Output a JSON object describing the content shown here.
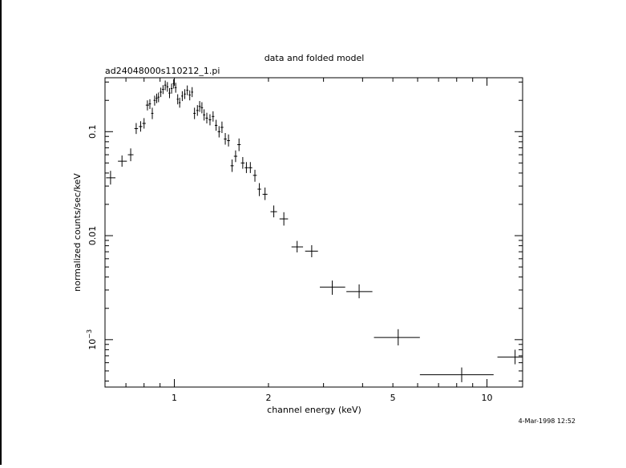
{
  "chart_data": {
    "type": "scatter",
    "title": "data and folded model",
    "subtitle": "ad24048000s110212_1.pi",
    "xlabel": "channel energy (keV)",
    "ylabel": "normalized counts/sec/keV",
    "timestamp": "4-Mar-1998 12:52",
    "x_scale": "log",
    "y_scale": "log",
    "xlim": [
      0.6,
      13.0
    ],
    "ylim": [
      0.00035,
      0.33
    ],
    "x_ticks": [
      {
        "v": 1,
        "label": "1"
      },
      {
        "v": 2,
        "label": "2"
      },
      {
        "v": 5,
        "label": "5"
      },
      {
        "v": 10,
        "label": "10"
      }
    ],
    "y_ticks": [
      {
        "v": 0.1,
        "label": "0.1"
      },
      {
        "v": 0.01,
        "label": "0.01"
      },
      {
        "v": 0.001,
        "label": "10",
        "sup": "−3"
      }
    ],
    "grid": false,
    "series": [
      {
        "points": [
          {
            "x": 0.625,
            "y": 0.036,
            "xlo": 0.605,
            "xhi": 0.648,
            "ylo": 0.031,
            "yhi": 0.042
          },
          {
            "x": 0.68,
            "y": 0.052,
            "xlo": 0.66,
            "xhi": 0.705,
            "ylo": 0.046,
            "yhi": 0.059
          },
          {
            "x": 0.725,
            "y": 0.06,
            "xlo": 0.71,
            "xhi": 0.74,
            "ylo": 0.052,
            "yhi": 0.069
          },
          {
            "x": 0.755,
            "y": 0.107,
            "xlo": 0.745,
            "xhi": 0.765,
            "ylo": 0.095,
            "yhi": 0.121
          },
          {
            "x": 0.78,
            "y": 0.112,
            "xlo": 0.77,
            "xhi": 0.79,
            "ylo": 0.1,
            "yhi": 0.126
          },
          {
            "x": 0.8,
            "y": 0.12,
            "xlo": 0.79,
            "xhi": 0.81,
            "ylo": 0.107,
            "yhi": 0.135
          },
          {
            "x": 0.82,
            "y": 0.18,
            "xlo": 0.81,
            "xhi": 0.83,
            "ylo": 0.16,
            "yhi": 0.2
          },
          {
            "x": 0.835,
            "y": 0.185,
            "xlo": 0.828,
            "xhi": 0.842,
            "ylo": 0.165,
            "yhi": 0.205
          },
          {
            "x": 0.85,
            "y": 0.15,
            "xlo": 0.843,
            "xhi": 0.857,
            "ylo": 0.132,
            "yhi": 0.17
          },
          {
            "x": 0.865,
            "y": 0.2,
            "xlo": 0.858,
            "xhi": 0.872,
            "ylo": 0.178,
            "yhi": 0.222
          },
          {
            "x": 0.878,
            "y": 0.21,
            "xlo": 0.872,
            "xhi": 0.884,
            "ylo": 0.188,
            "yhi": 0.232
          },
          {
            "x": 0.89,
            "y": 0.215,
            "xlo": 0.884,
            "xhi": 0.896,
            "ylo": 0.192,
            "yhi": 0.238
          },
          {
            "x": 0.905,
            "y": 0.24,
            "xlo": 0.898,
            "xhi": 0.912,
            "ylo": 0.215,
            "yhi": 0.265
          },
          {
            "x": 0.92,
            "y": 0.255,
            "xlo": 0.913,
            "xhi": 0.927,
            "ylo": 0.23,
            "yhi": 0.28
          },
          {
            "x": 0.935,
            "y": 0.28,
            "xlo": 0.928,
            "xhi": 0.942,
            "ylo": 0.25,
            "yhi": 0.31
          },
          {
            "x": 0.95,
            "y": 0.27,
            "xlo": 0.943,
            "xhi": 0.957,
            "ylo": 0.242,
            "yhi": 0.3
          },
          {
            "x": 0.965,
            "y": 0.235,
            "xlo": 0.958,
            "xhi": 0.972,
            "ylo": 0.21,
            "yhi": 0.262
          },
          {
            "x": 0.98,
            "y": 0.26,
            "xlo": 0.973,
            "xhi": 0.987,
            "ylo": 0.232,
            "yhi": 0.29
          },
          {
            "x": 0.995,
            "y": 0.29,
            "xlo": 0.988,
            "xhi": 1.002,
            "ylo": 0.26,
            "yhi": 0.32
          },
          {
            "x": 1.01,
            "y": 0.265,
            "xlo": 1.003,
            "xhi": 1.017,
            "ylo": 0.237,
            "yhi": 0.295
          },
          {
            "x": 1.025,
            "y": 0.205,
            "xlo": 1.018,
            "xhi": 1.032,
            "ylo": 0.183,
            "yhi": 0.229
          },
          {
            "x": 1.04,
            "y": 0.19,
            "xlo": 1.033,
            "xhi": 1.047,
            "ylo": 0.17,
            "yhi": 0.212
          },
          {
            "x": 1.06,
            "y": 0.22,
            "xlo": 1.052,
            "xhi": 1.068,
            "ylo": 0.197,
            "yhi": 0.245
          },
          {
            "x": 1.08,
            "y": 0.23,
            "xlo": 1.072,
            "xhi": 1.088,
            "ylo": 0.206,
            "yhi": 0.256
          },
          {
            "x": 1.1,
            "y": 0.25,
            "xlo": 1.092,
            "xhi": 1.108,
            "ylo": 0.224,
            "yhi": 0.278
          },
          {
            "x": 1.12,
            "y": 0.225,
            "xlo": 1.112,
            "xhi": 1.128,
            "ylo": 0.2,
            "yhi": 0.25
          },
          {
            "x": 1.14,
            "y": 0.24,
            "xlo": 1.132,
            "xhi": 1.148,
            "ylo": 0.215,
            "yhi": 0.268
          },
          {
            "x": 1.16,
            "y": 0.15,
            "xlo": 1.15,
            "xhi": 1.17,
            "ylo": 0.132,
            "yhi": 0.17
          },
          {
            "x": 1.185,
            "y": 0.16,
            "xlo": 1.175,
            "xhi": 1.195,
            "ylo": 0.142,
            "yhi": 0.18
          },
          {
            "x": 1.205,
            "y": 0.175,
            "xlo": 1.195,
            "xhi": 1.215,
            "ylo": 0.155,
            "yhi": 0.197
          },
          {
            "x": 1.225,
            "y": 0.17,
            "xlo": 1.215,
            "xhi": 1.235,
            "ylo": 0.15,
            "yhi": 0.192
          },
          {
            "x": 1.245,
            "y": 0.145,
            "xlo": 1.235,
            "xhi": 1.255,
            "ylo": 0.128,
            "yhi": 0.164
          },
          {
            "x": 1.27,
            "y": 0.135,
            "xlo": 1.258,
            "xhi": 1.282,
            "ylo": 0.12,
            "yhi": 0.152
          },
          {
            "x": 1.3,
            "y": 0.13,
            "xlo": 1.288,
            "xhi": 1.312,
            "ylo": 0.115,
            "yhi": 0.147
          },
          {
            "x": 1.33,
            "y": 0.14,
            "xlo": 1.318,
            "xhi": 1.342,
            "ylo": 0.125,
            "yhi": 0.157
          },
          {
            "x": 1.36,
            "y": 0.115,
            "xlo": 1.347,
            "xhi": 1.373,
            "ylo": 0.102,
            "yhi": 0.13
          },
          {
            "x": 1.39,
            "y": 0.1,
            "xlo": 1.376,
            "xhi": 1.404,
            "ylo": 0.088,
            "yhi": 0.113
          },
          {
            "x": 1.42,
            "y": 0.11,
            "xlo": 1.405,
            "xhi": 1.435,
            "ylo": 0.097,
            "yhi": 0.125
          },
          {
            "x": 1.455,
            "y": 0.085,
            "xlo": 1.44,
            "xhi": 1.47,
            "ylo": 0.075,
            "yhi": 0.097
          },
          {
            "x": 1.49,
            "y": 0.082,
            "xlo": 1.474,
            "xhi": 1.506,
            "ylo": 0.072,
            "yhi": 0.094
          },
          {
            "x": 1.53,
            "y": 0.047,
            "xlo": 1.512,
            "xhi": 1.548,
            "ylo": 0.041,
            "yhi": 0.054
          },
          {
            "x": 1.57,
            "y": 0.058,
            "xlo": 1.55,
            "xhi": 1.59,
            "ylo": 0.051,
            "yhi": 0.066
          },
          {
            "x": 1.61,
            "y": 0.075,
            "xlo": 1.59,
            "xhi": 1.63,
            "ylo": 0.065,
            "yhi": 0.086
          },
          {
            "x": 1.655,
            "y": 0.05,
            "xlo": 1.632,
            "xhi": 1.678,
            "ylo": 0.044,
            "yhi": 0.057
          },
          {
            "x": 1.7,
            "y": 0.045,
            "xlo": 1.678,
            "xhi": 1.722,
            "ylo": 0.04,
            "yhi": 0.051
          },
          {
            "x": 1.75,
            "y": 0.045,
            "xlo": 1.725,
            "xhi": 1.775,
            "ylo": 0.04,
            "yhi": 0.051
          },
          {
            "x": 1.81,
            "y": 0.038,
            "xlo": 1.785,
            "xhi": 1.835,
            "ylo": 0.033,
            "yhi": 0.043
          },
          {
            "x": 1.87,
            "y": 0.028,
            "xlo": 1.845,
            "xhi": 1.895,
            "ylo": 0.024,
            "yhi": 0.032
          },
          {
            "x": 1.95,
            "y": 0.025,
            "xlo": 1.915,
            "xhi": 1.985,
            "ylo": 0.022,
            "yhi": 0.029
          },
          {
            "x": 2.08,
            "y": 0.017,
            "xlo": 2.03,
            "xhi": 2.13,
            "ylo": 0.015,
            "yhi": 0.0195
          },
          {
            "x": 2.24,
            "y": 0.0145,
            "xlo": 2.17,
            "xhi": 2.31,
            "ylo": 0.0125,
            "yhi": 0.0168
          },
          {
            "x": 2.47,
            "y": 0.0078,
            "xlo": 2.37,
            "xhi": 2.58,
            "ylo": 0.0069,
            "yhi": 0.0089
          },
          {
            "x": 2.75,
            "y": 0.0071,
            "xlo": 2.62,
            "xhi": 2.88,
            "ylo": 0.0062,
            "yhi": 0.0081
          },
          {
            "x": 3.2,
            "y": 0.0032,
            "xlo": 2.92,
            "xhi": 3.52,
            "ylo": 0.0027,
            "yhi": 0.0037
          },
          {
            "x": 3.9,
            "y": 0.0029,
            "xlo": 3.55,
            "xhi": 4.3,
            "ylo": 0.0025,
            "yhi": 0.0034
          },
          {
            "x": 5.2,
            "y": 0.00105,
            "xlo": 4.35,
            "xhi": 6.1,
            "ylo": 0.00088,
            "yhi": 0.00126
          },
          {
            "x": 8.3,
            "y": 0.00046,
            "xlo": 6.1,
            "xhi": 10.5,
            "ylo": 0.00039,
            "yhi": 0.00054
          },
          {
            "x": 12.3,
            "y": 0.00068,
            "xlo": 10.8,
            "xhi": 13.0,
            "ylo": 0.00058,
            "yhi": 0.0008
          }
        ]
      }
    ]
  }
}
